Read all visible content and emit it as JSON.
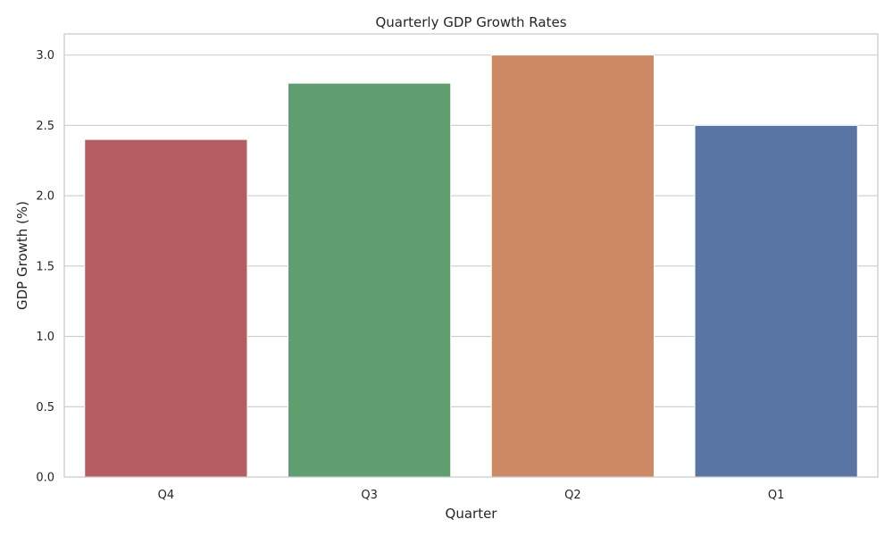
{
  "chart_data": {
    "type": "bar",
    "title": "Quarterly GDP Growth Rates",
    "xlabel": "Quarter",
    "ylabel": "GDP Growth (%)",
    "categories": [
      "Q4",
      "Q3",
      "Q2",
      "Q1"
    ],
    "values": [
      2.4,
      2.8,
      3.0,
      2.5
    ],
    "colors": [
      "#b55d60",
      "#5f9e6e",
      "#cc8963",
      "#5975a4"
    ],
    "ylim": [
      0,
      3.15
    ],
    "yticks": [
      0.0,
      0.5,
      1.0,
      1.5,
      2.0,
      2.5,
      3.0
    ],
    "ytick_labels": [
      "0.0",
      "0.5",
      "1.0",
      "1.5",
      "2.0",
      "2.5",
      "3.0"
    ],
    "grid": true,
    "legend": "none"
  }
}
